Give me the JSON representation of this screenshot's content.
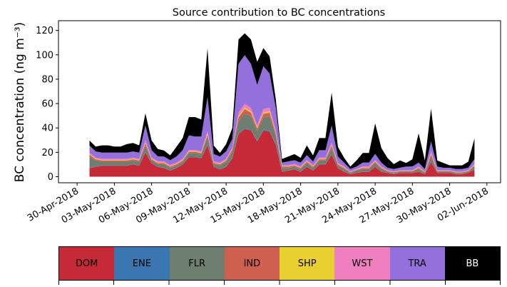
{
  "chart_data": {
    "type": "area",
    "stacked": true,
    "title": "Source contribution to BC concentrations",
    "xlabel": "",
    "ylabel": "BC concentration (ng m⁻³)",
    "ylim": [
      -5,
      128
    ],
    "yticks": [
      0,
      20,
      40,
      60,
      80,
      100,
      120
    ],
    "xlim_days": [
      -1.5,
      34.1
    ],
    "xtick_days": [
      0,
      3,
      6,
      9,
      12,
      15,
      18,
      21,
      24,
      27,
      30,
      33
    ],
    "xtick_labels": [
      "30-Apr-2018",
      "03-May-2018",
      "06-May-2018",
      "09-May-2018",
      "12-May-2018",
      "15-May-2018",
      "18-May-2018",
      "21-May-2018",
      "24-May-2018",
      "27-May-2018",
      "30-May-2018",
      "02-Jun-2018"
    ],
    "x_days": [
      1.0,
      1.5,
      2.0,
      2.5,
      3.0,
      3.5,
      4.0,
      4.5,
      5.0,
      5.5,
      6.0,
      6.5,
      7.0,
      7.5,
      8.0,
      8.5,
      9.0,
      9.5,
      10.0,
      10.5,
      11.0,
      11.5,
      12.0,
      12.5,
      13.0,
      13.5,
      14.0,
      14.5,
      15.0,
      15.5,
      16.0,
      16.5,
      17.0,
      17.5,
      18.0,
      18.5,
      19.0,
      19.5,
      20.0,
      20.5,
      21.0,
      21.5,
      22.0,
      22.5,
      23.0,
      23.5,
      24.0,
      24.5,
      25.0,
      25.5,
      26.0,
      26.5,
      27.0,
      27.5,
      28.0,
      28.5,
      29.0,
      29.5,
      30.0,
      30.5,
      31.0,
      31.5,
      32.0
    ],
    "series": [
      {
        "name": "DOM",
        "color": "#c62a36",
        "values": [
          7,
          8,
          9,
          9,
          9,
          9,
          9,
          10,
          9,
          20,
          11,
          8,
          7,
          5,
          7,
          10,
          16,
          16,
          15,
          26,
          8,
          6,
          8,
          15,
          35,
          39,
          38,
          29,
          38,
          37,
          26,
          4,
          5,
          6,
          4,
          8,
          5,
          10,
          10,
          18,
          7,
          4,
          2,
          3,
          4,
          4,
          8,
          4,
          3,
          2,
          3,
          3,
          3,
          4,
          2,
          12,
          3,
          3,
          3,
          2,
          2,
          3,
          6
        ]
      },
      {
        "name": "ENE",
        "color": "#3a76b0",
        "values": [
          0.2,
          0.3,
          0.3,
          0.3,
          0.3,
          0.3,
          0.3,
          0.3,
          0.3,
          0.4,
          0.3,
          0.3,
          0.2,
          0.2,
          0.2,
          0.3,
          0.4,
          0.4,
          0.4,
          0.5,
          0.3,
          0.2,
          0.3,
          0.4,
          0.6,
          0.6,
          0.6,
          0.5,
          0.6,
          0.6,
          0.5,
          0.2,
          0.2,
          0.2,
          0.2,
          0.3,
          0.2,
          0.3,
          0.3,
          0.4,
          0.2,
          0.2,
          0.1,
          0.1,
          0.2,
          0.2,
          0.3,
          0.2,
          0.1,
          0.1,
          0.1,
          0.1,
          0.1,
          0.2,
          0.1,
          0.3,
          0.1,
          0.1,
          0.1,
          0.1,
          0.1,
          0.1,
          0.2
        ]
      },
      {
        "name": "FLR",
        "color": "#6f7f6f",
        "values": [
          9,
          5,
          3,
          3,
          3,
          3,
          3,
          3,
          3,
          5,
          2,
          2,
          3,
          2,
          2,
          2,
          3,
          3,
          3,
          6,
          2,
          3,
          4,
          5,
          10,
          12,
          11,
          8,
          10,
          12,
          7,
          3,
          2,
          2,
          2,
          3,
          2,
          3,
          3,
          5,
          2,
          2,
          1,
          2,
          2,
          2,
          3,
          2,
          1,
          1,
          1,
          1,
          1,
          2,
          1,
          4,
          1,
          1,
          1,
          1,
          1,
          1,
          2
        ]
      },
      {
        "name": "IND",
        "color": "#cf6050",
        "values": [
          2,
          1,
          1,
          1,
          1,
          1,
          1,
          1,
          1,
          2,
          1,
          1,
          1,
          1,
          1,
          1,
          1,
          1,
          1,
          2,
          1,
          1,
          1,
          2,
          3,
          4,
          3,
          2,
          3,
          3,
          2,
          1,
          1,
          1,
          1,
          1,
          1,
          1,
          1,
          2,
          1,
          1,
          0.5,
          0.5,
          1,
          1,
          1,
          1,
          0.5,
          0.5,
          0.5,
          0.5,
          0.5,
          1,
          0.5,
          2,
          0.5,
          0.5,
          0.5,
          0.5,
          0.5,
          0.5,
          1
        ]
      },
      {
        "name": "SHP",
        "color": "#e8d030",
        "values": [
          0.4,
          0.4,
          0.4,
          0.4,
          0.4,
          0.4,
          0.4,
          0.4,
          0.4,
          0.6,
          0.4,
          0.4,
          0.3,
          0.3,
          0.3,
          0.4,
          0.5,
          0.5,
          0.5,
          0.8,
          0.3,
          0.3,
          0.4,
          0.5,
          1.0,
          1.1,
          1.0,
          0.8,
          1.0,
          1.1,
          0.8,
          0.3,
          0.3,
          0.3,
          0.3,
          0.4,
          0.3,
          0.4,
          0.4,
          0.6,
          0.3,
          0.3,
          0.2,
          0.2,
          0.3,
          0.3,
          0.4,
          0.3,
          0.2,
          0.2,
          0.2,
          0.2,
          0.2,
          0.3,
          0.2,
          0.5,
          0.2,
          0.2,
          0.2,
          0.2,
          0.2,
          0.2,
          0.3
        ]
      },
      {
        "name": "WST",
        "color": "#f07fbf",
        "values": [
          1,
          1,
          1,
          1,
          1,
          1,
          1,
          1,
          1,
          2,
          1,
          1,
          1,
          1,
          1,
          1,
          1,
          1,
          1,
          2,
          1,
          1,
          1,
          1,
          3,
          3,
          3,
          2,
          3,
          3,
          2,
          1,
          1,
          1,
          1,
          1,
          1,
          1,
          1,
          2,
          1,
          1,
          0.5,
          0.5,
          1,
          1,
          1,
          1,
          0.5,
          0.5,
          0.5,
          0.5,
          0.5,
          1,
          0.5,
          2,
          0.5,
          0.5,
          0.5,
          0.5,
          0.5,
          0.5,
          1
        ]
      },
      {
        "name": "TRA",
        "color": "#9370db",
        "values": [
          6,
          5,
          5,
          5,
          5,
          5,
          5,
          5,
          5,
          12,
          6,
          4,
          4,
          4,
          5,
          7,
          12,
          11,
          12,
          28,
          6,
          5,
          6,
          7,
          40,
          40,
          36,
          33,
          35,
          28,
          18,
          2,
          3,
          3,
          3,
          4,
          3,
          6,
          6,
          14,
          5,
          3,
          2,
          2,
          3,
          3,
          5,
          3,
          2,
          2,
          2,
          3,
          3,
          3,
          2,
          8,
          3,
          2,
          2,
          2,
          2,
          2,
          4
        ]
      },
      {
        "name": "BB",
        "color": "#000000",
        "values": [
          4,
          4,
          6,
          6,
          5,
          5,
          7,
          7,
          6,
          10,
          8,
          6,
          5,
          4,
          8,
          10,
          15,
          16,
          14,
          40,
          7,
          3,
          6,
          9,
          20,
          18,
          20,
          19,
          15,
          14,
          7,
          3,
          4,
          5,
          4,
          8,
          5,
          10,
          10,
          27,
          8,
          4,
          2,
          5,
          8,
          8,
          25,
          12,
          8,
          4,
          6,
          3,
          6,
          24,
          7,
          27,
          5,
          4,
          2,
          3,
          3,
          5,
          17
        ]
      }
    ],
    "legend": [
      "DOM",
      "ENE",
      "FLR",
      "IND",
      "SHP",
      "WST",
      "TRA",
      "BB"
    ],
    "legend_placement": "bottom",
    "grid": false
  }
}
